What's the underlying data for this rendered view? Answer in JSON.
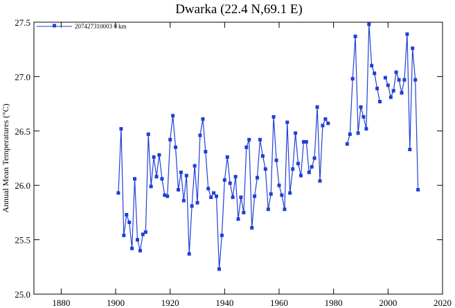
{
  "chart_data": {
    "type": "line",
    "title": "Dwarka (22.4 N,69.1 E)",
    "xlabel": "",
    "ylabel": "Annual Mean Temperatures (°C)",
    "xlim": [
      1870,
      2020
    ],
    "ylim": [
      25.0,
      27.5
    ],
    "xticks": [
      1880,
      1900,
      1920,
      1940,
      1960,
      1980,
      2000,
      2020
    ],
    "yticks": [
      25.0,
      25.5,
      26.0,
      26.5,
      27.0,
      27.5
    ],
    "ytick_labels": [
      "25.0",
      "25.5",
      "26.0",
      "26.5",
      "27.0",
      "27.5"
    ],
    "grid": false,
    "legend": {
      "position": "top-left",
      "entries": [
        "207427310003 0 km"
      ]
    },
    "color": "#1f3fd6",
    "series": [
      {
        "name": "207427310003 0 km",
        "segments": [
          [
            [
              1901,
              25.93
            ],
            [
              1902,
              26.52
            ],
            [
              1903,
              25.54
            ],
            [
              1904,
              25.73
            ],
            [
              1905,
              25.66
            ],
            [
              1906,
              25.42
            ],
            [
              1907,
              26.06
            ],
            [
              1908,
              25.5
            ],
            [
              1909,
              25.4
            ],
            [
              1910,
              25.55
            ],
            [
              1911,
              25.57
            ],
            [
              1912,
              26.47
            ],
            [
              1913,
              25.99
            ],
            [
              1914,
              26.26
            ],
            [
              1915,
              26.08
            ],
            [
              1916,
              26.28
            ],
            [
              1917,
              26.06
            ],
            [
              1918,
              25.91
            ],
            [
              1919,
              25.9
            ],
            [
              1920,
              26.42
            ],
            [
              1921,
              26.64
            ],
            [
              1922,
              26.35
            ],
            [
              1923,
              25.96
            ],
            [
              1924,
              26.12
            ],
            [
              1925,
              25.86
            ],
            [
              1926,
              26.09
            ],
            [
              1927,
              25.37
            ],
            [
              1928,
              25.81
            ],
            [
              1929,
              26.18
            ],
            [
              1930,
              25.84
            ],
            [
              1931,
              26.46
            ],
            [
              1932,
              26.61
            ],
            [
              1933,
              26.31
            ],
            [
              1934,
              25.97
            ],
            [
              1935,
              25.89
            ],
            [
              1936,
              25.93
            ],
            [
              1937,
              25.9
            ],
            [
              1938,
              25.23
            ],
            [
              1939,
              25.54
            ],
            [
              1940,
              26.05
            ],
            [
              1941,
              26.26
            ],
            [
              1942,
              26.02
            ],
            [
              1943,
              25.89
            ],
            [
              1944,
              26.08
            ],
            [
              1945,
              25.69
            ],
            [
              1946,
              25.89
            ],
            [
              1947,
              25.75
            ],
            [
              1948,
              26.35
            ],
            [
              1949,
              26.42
            ],
            [
              1950,
              25.61
            ],
            [
              1951,
              25.9
            ],
            [
              1952,
              26.07
            ],
            [
              1953,
              26.42
            ],
            [
              1954,
              26.27
            ],
            [
              1955,
              26.15
            ],
            [
              1956,
              25.78
            ],
            [
              1957,
              25.92
            ],
            [
              1958,
              26.63
            ],
            [
              1959,
              26.23
            ],
            [
              1960,
              26.0
            ],
            [
              1961,
              25.91
            ],
            [
              1962,
              25.78
            ],
            [
              1963,
              26.58
            ],
            [
              1964,
              25.93
            ],
            [
              1965,
              26.15
            ],
            [
              1966,
              26.48
            ],
            [
              1967,
              26.2
            ],
            [
              1968,
              26.09
            ],
            [
              1969,
              26.4
            ],
            [
              1970,
              26.4
            ],
            [
              1971,
              26.12
            ],
            [
              1972,
              26.17
            ],
            [
              1973,
              26.25
            ],
            [
              1974,
              26.72
            ],
            [
              1975,
              26.04
            ],
            [
              1976,
              26.55
            ],
            [
              1977,
              26.61
            ],
            [
              1978,
              26.57
            ]
          ],
          [
            [
              1985,
              26.38
            ],
            [
              1986,
              26.47
            ],
            [
              1987,
              26.98
            ],
            [
              1988,
              27.37
            ],
            [
              1989,
              26.48
            ],
            [
              1990,
              26.72
            ],
            [
              1991,
              26.63
            ],
            [
              1992,
              26.52
            ],
            [
              1993,
              27.48
            ],
            [
              1994,
              27.1
            ],
            [
              1995,
              27.03
            ],
            [
              1996,
              26.89
            ],
            [
              1997,
              26.77
            ]
          ],
          [
            [
              1999,
              26.99
            ],
            [
              2000,
              26.92
            ],
            [
              2001,
              26.81
            ],
            [
              2002,
              26.87
            ],
            [
              2003,
              27.04
            ],
            [
              2004,
              26.97
            ],
            [
              2005,
              26.85
            ],
            [
              2006,
              26.97
            ],
            [
              2007,
              27.39
            ],
            [
              2008,
              26.33
            ],
            [
              2009,
              27.26
            ],
            [
              2010,
              26.97
            ],
            [
              2011,
              25.96
            ]
          ]
        ]
      }
    ]
  }
}
